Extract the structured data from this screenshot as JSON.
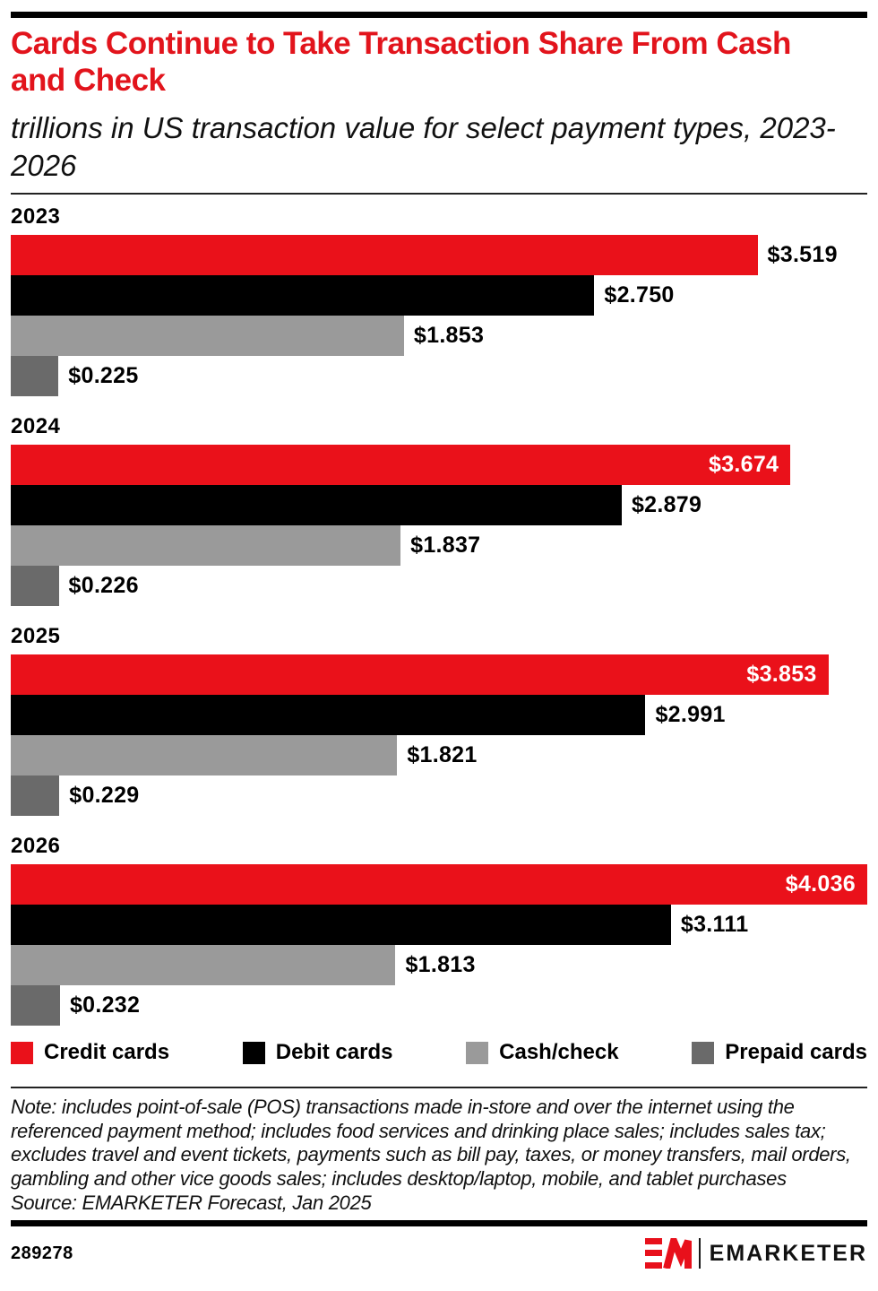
{
  "header": {
    "title": "Cards Continue to Take Transaction Share From Cash and Check",
    "subtitle": "trillions in US transaction value for select payment types, 2023-2026"
  },
  "chart_data": {
    "type": "bar",
    "orientation": "horizontal",
    "value_unit": "trillions of US dollars",
    "xmax": 4.036,
    "grid": false,
    "categories": [
      "2023",
      "2024",
      "2025",
      "2026"
    ],
    "series": [
      {
        "name": "Credit cards",
        "color": "#ea111a",
        "values": [
          3.519,
          3.674,
          3.853,
          4.036
        ],
        "labels": [
          "$3.519",
          "$3.674",
          "$3.853",
          "$4.036"
        ],
        "label_inside": [
          false,
          true,
          true,
          true
        ]
      },
      {
        "name": "Debit cards",
        "color": "#000000",
        "values": [
          2.75,
          2.879,
          2.991,
          3.111
        ],
        "labels": [
          "$2.750",
          "$2.879",
          "$2.991",
          "$3.111"
        ],
        "label_inside": [
          false,
          false,
          false,
          false
        ]
      },
      {
        "name": "Cash/check",
        "color": "#9a9a9a",
        "values": [
          1.853,
          1.837,
          1.821,
          1.813
        ],
        "labels": [
          "$1.853",
          "$1.837",
          "$1.821",
          "$1.813"
        ],
        "label_inside": [
          false,
          false,
          false,
          false
        ]
      },
      {
        "name": "Prepaid cards",
        "color": "#6a6a6a",
        "values": [
          0.225,
          0.226,
          0.229,
          0.232
        ],
        "labels": [
          "$0.225",
          "$0.226",
          "$0.229",
          "$0.232"
        ],
        "label_inside": [
          false,
          false,
          false,
          false
        ]
      }
    ],
    "legend_position": "bottom"
  },
  "legend": {
    "items": [
      {
        "label": "Credit cards",
        "color": "#ea111a"
      },
      {
        "label": "Debit cards",
        "color": "#000000"
      },
      {
        "label": "Cash/check",
        "color": "#9a9a9a"
      },
      {
        "label": "Prepaid cards",
        "color": "#6a6a6a"
      }
    ]
  },
  "notes": {
    "note": "Note: includes point-of-sale (POS) transactions made in-store and over the internet using the referenced payment method; includes food services and drinking place sales; includes sales tax; excludes travel and event tickets, payments such as bill pay, taxes, or money transfers, mail orders, gambling and other vice goods sales; includes desktop/laptop, mobile, and tablet purchases",
    "source": "Source: EMARKETER Forecast, Jan 2025"
  },
  "footer": {
    "chart_id": "289278",
    "brand": "EMARKETER"
  },
  "colors": {
    "title_red": "#e2141c",
    "logo_red": "#e8101b"
  }
}
